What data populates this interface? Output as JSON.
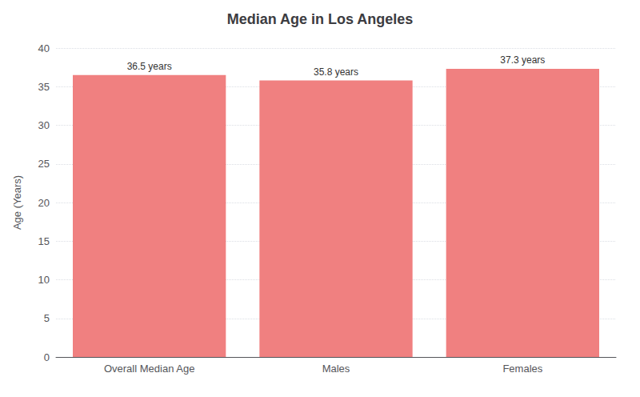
{
  "chart_data": {
    "type": "bar",
    "title": "Median Age in Los Angeles",
    "categories": [
      "Overall Median Age",
      "Males",
      "Females"
    ],
    "values": [
      36.5,
      35.8,
      37.3
    ],
    "value_labels": [
      "36.5 years",
      "35.8 years",
      "37.3 years"
    ],
    "data_labels": true,
    "color": "#F08080",
    "ylabel": "Age (Years)",
    "ylim": [
      0,
      40
    ],
    "yticks": [
      0,
      5,
      10,
      15,
      20,
      25,
      30,
      35,
      40
    ],
    "grid": true
  }
}
